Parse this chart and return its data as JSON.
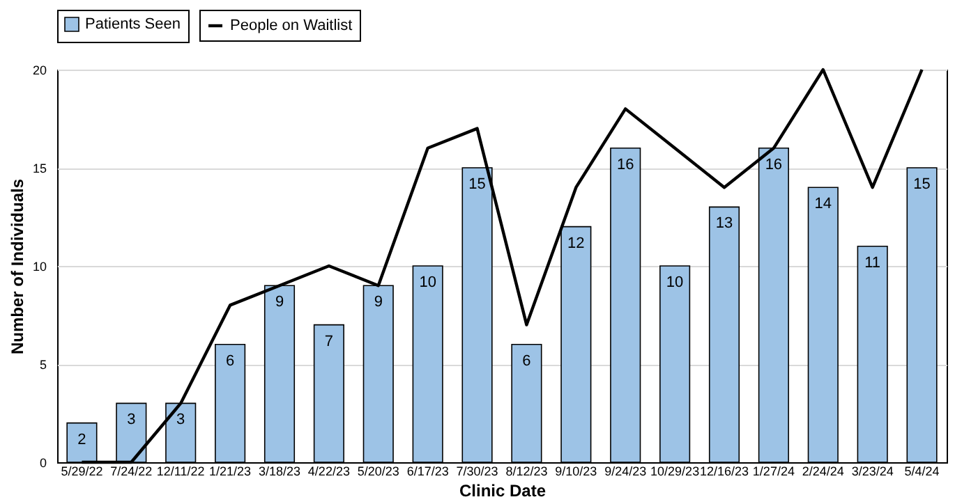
{
  "chart_data": {
    "type": "bar",
    "xlabel": "Clinic Date",
    "ylabel": "Number of Individuals",
    "categories": [
      "5/29/22",
      "7/24/22",
      "12/11/22",
      "1/21/23",
      "3/18/23",
      "4/22/23",
      "5/20/23",
      "6/17/23",
      "7/30/23",
      "8/12/23",
      "9/10/23",
      "9/24/23",
      "10/29/23",
      "12/16/23",
      "1/27/24",
      "2/24/24",
      "3/23/24",
      "5/4/24"
    ],
    "series": [
      {
        "name": "Patients Seen",
        "color": "#9dc3e6",
        "values": [
          2,
          3,
          3,
          6,
          9,
          7,
          9,
          10,
          15,
          6,
          12,
          16,
          10,
          13,
          16,
          14,
          11,
          15
        ],
        "value_labels": [
          "2",
          "3",
          "3",
          "6",
          "9",
          "7",
          "9",
          "10",
          "15",
          "6",
          "12",
          "16",
          "10",
          "13",
          "16",
          "14",
          "11",
          "15"
        ]
      },
      {
        "name": "People on Waitlist",
        "type": "line",
        "color": "#000000",
        "values": [
          0,
          0,
          3,
          8,
          9,
          10,
          9,
          16,
          17,
          7,
          14,
          18,
          16,
          14,
          16,
          20,
          14,
          20
        ]
      }
    ],
    "ylim": [
      0,
      20
    ],
    "yticks": [
      0,
      5,
      10,
      15,
      20
    ],
    "grid": "y",
    "legend": "top"
  }
}
